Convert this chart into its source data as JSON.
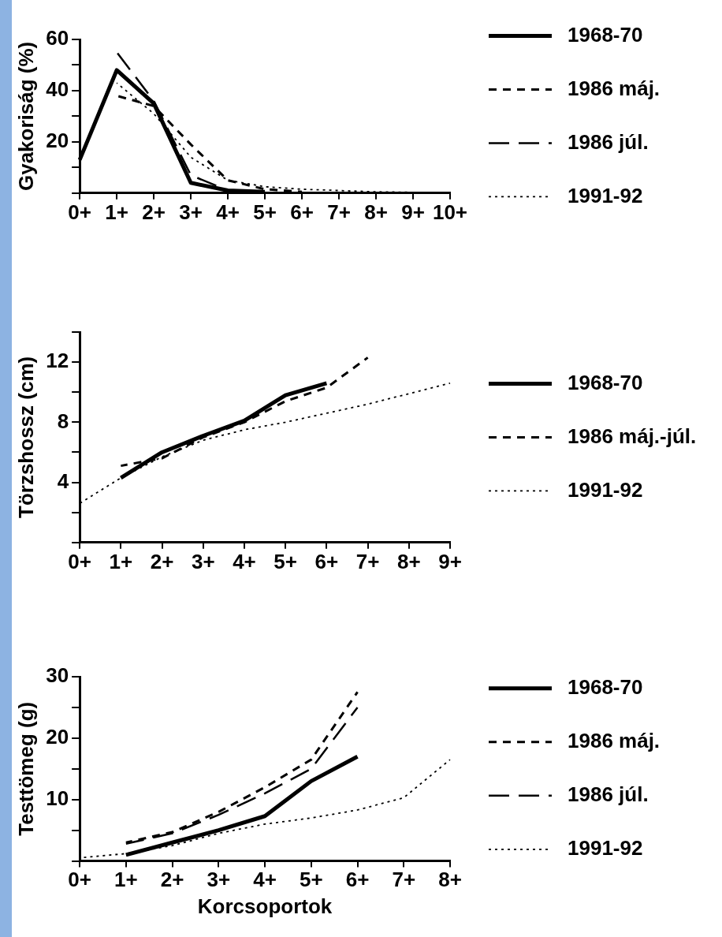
{
  "chart_data": [
    {
      "type": "line",
      "ylabel": "Gyakoriság (%)",
      "categories": [
        "0+",
        "1+",
        "2+",
        "3+",
        "4+",
        "5+",
        "6+",
        "7+",
        "8+",
        "9+",
        "10+"
      ],
      "ylim": [
        0,
        60
      ],
      "yticks": [
        {
          "value": 0,
          "label": null
        },
        {
          "value": 10,
          "label": null
        },
        20,
        {
          "value": 30,
          "label": null
        },
        40,
        {
          "value": 50,
          "label": null
        },
        60
      ],
      "legend": "right",
      "grid": false,
      "marker": "none",
      "series": [
        {
          "name": "1968-70",
          "color": "#000000",
          "line_style": "solid",
          "values": [
            13,
            48,
            35,
            4,
            1,
            0.5,
            null,
            null,
            null,
            null,
            null
          ]
        },
        {
          "name": "1986 máj.",
          "color": "#000000",
          "line_style": "dashed",
          "values": [
            null,
            38,
            34,
            19,
            5,
            1.5,
            0.5,
            null,
            null,
            null,
            null
          ]
        },
        {
          "name": "1986 júl.",
          "color": "#000000",
          "line_style": "dashed",
          "values": [
            null,
            55,
            36,
            7,
            1,
            0.3,
            null,
            null,
            null,
            null,
            null
          ]
        },
        {
          "name": "1991-92",
          "color": "#000000",
          "line_style": "dotted",
          "values": [
            null,
            43,
            31,
            14,
            5,
            2.5,
            1.5,
            1,
            0.5,
            0.3,
            0.2
          ]
        }
      ]
    },
    {
      "type": "line",
      "ylabel": "Törzshossz (cm)",
      "categories": [
        "0+",
        "1+",
        "2+",
        "3+",
        "4+",
        "5+",
        "6+",
        "7+",
        "8+",
        "9+"
      ],
      "ylim": [
        0,
        14
      ],
      "yticks": [
        {
          "value": 0,
          "label": null
        },
        {
          "value": 2,
          "label": null
        },
        4,
        {
          "value": 6,
          "label": null
        },
        8,
        {
          "value": 10,
          "label": null
        },
        12,
        {
          "value": 14,
          "label": null
        }
      ],
      "legend": "right",
      "grid": false,
      "marker": "none",
      "series": [
        {
          "name": "1968-70",
          "color": "#000000",
          "line_style": "solid",
          "values": [
            null,
            4.3,
            6,
            7.1,
            8.1,
            9.8,
            10.6,
            null,
            null,
            null
          ]
        },
        {
          "name": "1986 máj.-júl.",
          "color": "#000000",
          "line_style": "dashed",
          "values": [
            null,
            5.1,
            5.6,
            7,
            8,
            9.4,
            10.3,
            12.3,
            null,
            null
          ]
        },
        {
          "name": "1991-92",
          "color": "#000000",
          "line_style": "dotted",
          "values": [
            2.6,
            4.3,
            5.7,
            6.8,
            7.5,
            8,
            8.6,
            9.2,
            9.9,
            10.6
          ]
        }
      ]
    },
    {
      "type": "line",
      "ylabel": "Testtömeg (g)",
      "xlabel": "Korcsoportok",
      "categories": [
        "0+",
        "1+",
        "2+",
        "3+",
        "4+",
        "5+",
        "6+",
        "7+",
        "8+"
      ],
      "ylim": [
        0,
        30
      ],
      "yticks": [
        {
          "value": 0,
          "label": null
        },
        {
          "value": 5,
          "label": null
        },
        10,
        {
          "value": 15,
          "label": null
        },
        20,
        {
          "value": 25,
          "label": null
        },
        30
      ],
      "legend": "right",
      "grid": false,
      "marker": "none",
      "series": [
        {
          "name": "1968-70",
          "color": "#000000",
          "line_style": "solid",
          "values": [
            null,
            1,
            3,
            5,
            7.3,
            13,
            17,
            null,
            null
          ]
        },
        {
          "name": "1986 máj.",
          "color": "#000000",
          "line_style": "dashed",
          "values": [
            null,
            3,
            4.7,
            8,
            12,
            16.5,
            27.5,
            null,
            null
          ]
        },
        {
          "name": "1986 júl.",
          "color": "#000000",
          "line_style": "dashed",
          "values": [
            null,
            2.8,
            4.5,
            7.5,
            11,
            15,
            25,
            null,
            null
          ]
        },
        {
          "name": "1991-92",
          "color": "#000000",
          "line_style": "dotted",
          "values": [
            0.5,
            1.2,
            2.5,
            4.5,
            6,
            7,
            8.3,
            10.3,
            16.5
          ]
        }
      ]
    }
  ]
}
